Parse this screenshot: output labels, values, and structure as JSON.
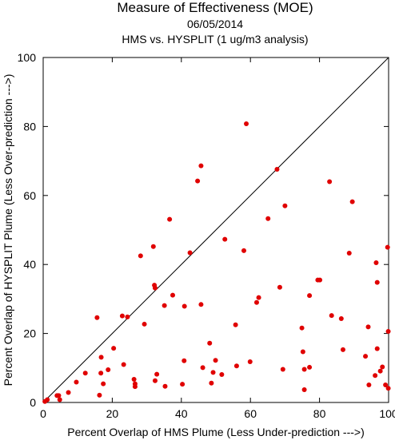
{
  "chart_data": {
    "type": "scatter",
    "title": "Measure of Effectiveness (MOE)",
    "subtitle_date": "06/05/2014",
    "subtitle": "HMS vs. HYSPLIT  (1 ug/m3 analysis)",
    "xlabel": "Percent Overlap of HMS Plume (Less Under-prediction --->)",
    "ylabel": "Percent Overlap of HYSPLIT Plume (Less Over-prediction --->)",
    "xlim": [
      0,
      100
    ],
    "ylim": [
      0,
      100
    ],
    "xticks": [
      0,
      20,
      40,
      60,
      80,
      100
    ],
    "yticks": [
      0,
      20,
      40,
      60,
      80,
      100
    ],
    "reference_line": "y = x",
    "grid": false,
    "point_color": "#e00000",
    "points": [
      [
        0.5,
        0.3
      ],
      [
        1.2,
        0.8
      ],
      [
        4.0,
        2.0
      ],
      [
        4.5,
        2.0
      ],
      [
        4.8,
        0.8
      ],
      [
        7.3,
        2.9
      ],
      [
        9.6,
        5.9
      ],
      [
        12.2,
        8.5
      ],
      [
        15.6,
        24.6
      ],
      [
        16.3,
        2.1
      ],
      [
        16.7,
        8.5
      ],
      [
        16.8,
        13.1
      ],
      [
        17.4,
        5.4
      ],
      [
        18.8,
        9.5
      ],
      [
        20.4,
        15.7
      ],
      [
        22.9,
        25.1
      ],
      [
        23.3,
        11.0
      ],
      [
        24.4,
        24.8
      ],
      [
        26.3,
        6.7
      ],
      [
        26.6,
        4.6
      ],
      [
        26.6,
        5.4
      ],
      [
        28.2,
        42.5
      ],
      [
        29.3,
        22.7
      ],
      [
        31.9,
        45.2
      ],
      [
        32.2,
        34.0
      ],
      [
        32.4,
        33.2
      ],
      [
        32.4,
        6.3
      ],
      [
        32.9,
        8.2
      ],
      [
        35.1,
        28.1
      ],
      [
        35.3,
        4.7
      ],
      [
        36.6,
        53.1
      ],
      [
        37.5,
        31.1
      ],
      [
        40.3,
        5.3
      ],
      [
        40.8,
        12.1
      ],
      [
        40.9,
        27.9
      ],
      [
        42.5,
        43.4
      ],
      [
        44.7,
        64.2
      ],
      [
        45.7,
        68.6
      ],
      [
        45.7,
        28.4
      ],
      [
        46.2,
        10.1
      ],
      [
        48.2,
        17.2
      ],
      [
        48.7,
        5.6
      ],
      [
        49.2,
        8.7
      ],
      [
        49.9,
        12.2
      ],
      [
        51.7,
        8.1
      ],
      [
        52.6,
        47.3
      ],
      [
        55.7,
        22.5
      ],
      [
        56.0,
        10.6
      ],
      [
        58.1,
        44.0
      ],
      [
        58.8,
        80.8
      ],
      [
        59.9,
        11.8
      ],
      [
        61.8,
        29.0
      ],
      [
        62.4,
        30.4
      ],
      [
        65.1,
        53.3
      ],
      [
        67.7,
        67.6
      ],
      [
        68.5,
        33.4
      ],
      [
        69.4,
        9.6
      ],
      [
        70.0,
        57.0
      ],
      [
        74.9,
        21.6
      ],
      [
        75.2,
        14.7
      ],
      [
        75.6,
        3.7
      ],
      [
        75.6,
        9.6
      ],
      [
        77.1,
        31.0
      ],
      [
        77.1,
        10.2
      ],
      [
        79.5,
        35.5
      ],
      [
        80.1,
        35.5
      ],
      [
        82.9,
        64.0
      ],
      [
        83.5,
        25.2
      ],
      [
        86.3,
        24.3
      ],
      [
        86.8,
        15.3
      ],
      [
        88.6,
        43.3
      ],
      [
        89.5,
        58.2
      ],
      [
        93.3,
        13.4
      ],
      [
        94.1,
        21.9
      ],
      [
        94.3,
        5.1
      ],
      [
        96.1,
        7.8
      ],
      [
        96.4,
        40.5
      ],
      [
        96.7,
        15.6
      ],
      [
        96.7,
        34.8
      ],
      [
        97.6,
        9.1
      ],
      [
        98.2,
        10.3
      ],
      [
        99.1,
        5.1
      ],
      [
        99.7,
        45.0
      ],
      [
        99.9,
        4.1
      ],
      [
        99.9,
        20.6
      ]
    ]
  }
}
